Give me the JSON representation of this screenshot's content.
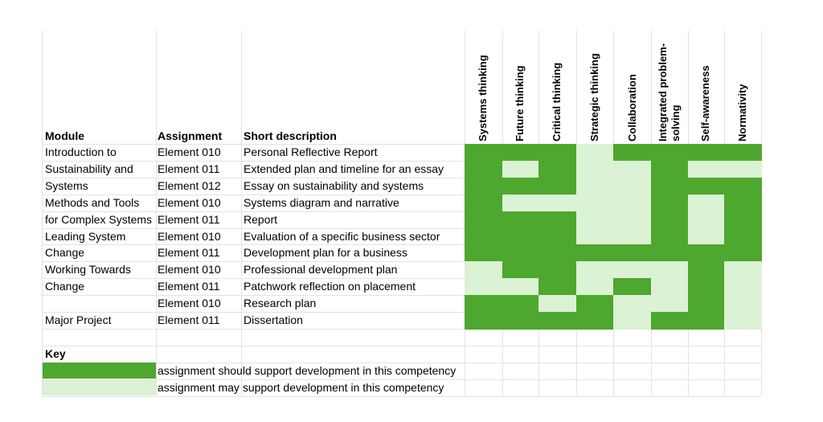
{
  "headers": {
    "module": "Module",
    "assignment": "Assignment",
    "description": "Short description"
  },
  "competencies": [
    "Systems thinking",
    "Future thinking",
    "Critical thinking",
    "Strategic thinking",
    "Collaboration",
    "Integrated problem-solving",
    "Self-awareness",
    "Normativity"
  ],
  "competency_lines": [
    [
      "Systems thinking"
    ],
    [
      "Future thinking"
    ],
    [
      "Critical thinking"
    ],
    [
      "Strategic thinking"
    ],
    [
      "Collaboration"
    ],
    [
      "Integrated problem-",
      "solving"
    ],
    [
      "Self-awareness"
    ],
    [
      "Normativity"
    ]
  ],
  "module_lines": [
    "Introduction to",
    "Sustainability and",
    "Systems",
    "Methods and Tools",
    "for Complex Systems",
    "Leading System",
    "Change",
    "Working Towards",
    "Change",
    "",
    "Major Project"
  ],
  "rows": [
    {
      "assignment": "Element 010",
      "description": "Personal Reflective Report",
      "levels": [
        2,
        2,
        2,
        1,
        2,
        2,
        2,
        2
      ]
    },
    {
      "assignment": "Element 011",
      "description": "Extended plan and timeline for an essay",
      "levels": [
        2,
        1,
        2,
        1,
        1,
        2,
        1,
        1
      ]
    },
    {
      "assignment": "Element 012",
      "description": "Essay on sustainability and systems",
      "levels": [
        2,
        2,
        2,
        1,
        1,
        2,
        2,
        2
      ]
    },
    {
      "assignment": "Element 010",
      "description": "Systems diagram and narrative",
      "levels": [
        2,
        1,
        1,
        1,
        1,
        2,
        1,
        2
      ]
    },
    {
      "assignment": "Element 011",
      "description": "Report",
      "levels": [
        2,
        2,
        2,
        1,
        1,
        2,
        1,
        2
      ]
    },
    {
      "assignment": "Element 010",
      "description": "Evaluation of a specific business sector",
      "levels": [
        2,
        2,
        2,
        1,
        1,
        2,
        1,
        2
      ]
    },
    {
      "assignment": "Element 011",
      "description": "Development plan for a business",
      "levels": [
        2,
        2,
        2,
        2,
        2,
        2,
        2,
        2
      ]
    },
    {
      "assignment": "Element 010",
      "description": "Professional development plan",
      "levels": [
        1,
        2,
        2,
        1,
        1,
        1,
        2,
        1
      ]
    },
    {
      "assignment": "Element 011",
      "description": "Patchwork reflection on placement",
      "levels": [
        1,
        1,
        2,
        1,
        2,
        1,
        2,
        1
      ]
    },
    {
      "assignment": "Element 010",
      "description": "Research plan",
      "levels": [
        2,
        2,
        1,
        2,
        1,
        1,
        2,
        1
      ]
    },
    {
      "assignment": "Element 011",
      "description": "Dissertation",
      "levels": [
        2,
        2,
        2,
        2,
        1,
        2,
        2,
        1
      ]
    }
  ],
  "key": {
    "title": "Key",
    "items": [
      {
        "label": "assignment should support development in this competency",
        "level": 2
      },
      {
        "label": "assignment may support development in this competency",
        "level": 1
      }
    ]
  },
  "colors": {
    "strong": "#4ea72e",
    "light": "#dcf2d4",
    "grid": "#e3e3e3"
  }
}
